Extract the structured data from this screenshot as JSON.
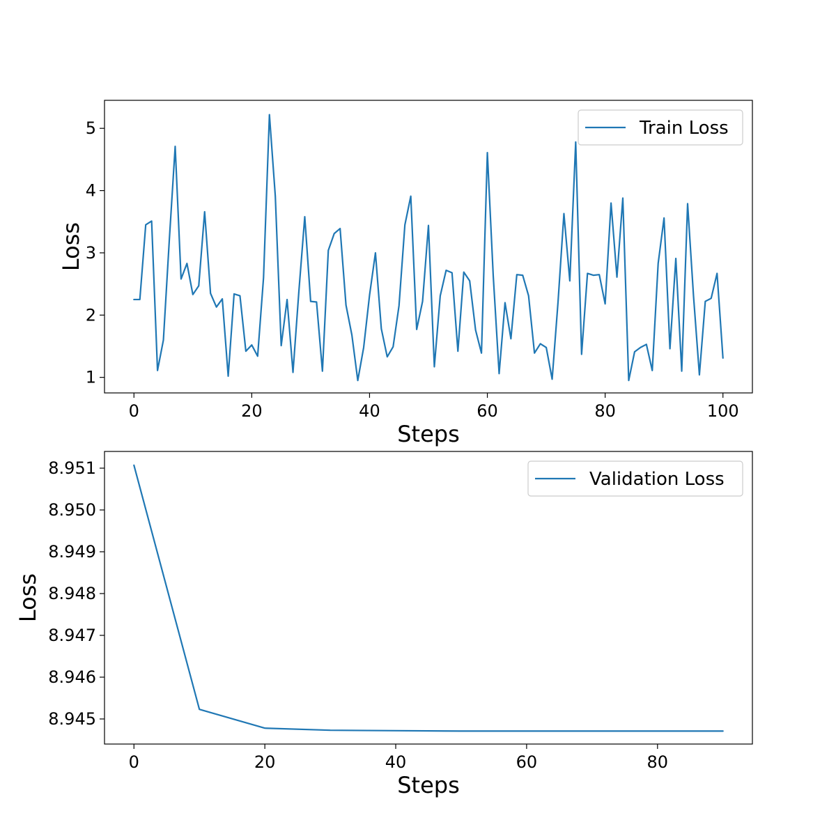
{
  "chart_data": [
    {
      "type": "line",
      "xlabel": "Steps",
      "ylabel": "Loss",
      "xlim": [
        -5,
        105
      ],
      "ylim": [
        0.75,
        5.45
      ],
      "xticks": [
        0,
        20,
        40,
        60,
        80,
        100
      ],
      "yticks": [
        1,
        2,
        3,
        4,
        5
      ],
      "grid": false,
      "legend_position": "top-right",
      "color": "#1f77b4",
      "series": [
        {
          "name": "Train Loss",
          "x": [
            0,
            1,
            2,
            3,
            4,
            5,
            6,
            7,
            8,
            9,
            10,
            11,
            12,
            13,
            14,
            15,
            16,
            17,
            18,
            19,
            20,
            21,
            22,
            23,
            24,
            25,
            26,
            27,
            28,
            29,
            30,
            31,
            32,
            33,
            34,
            35,
            36,
            37,
            38,
            39,
            40,
            41,
            42,
            43,
            44,
            45,
            46,
            47,
            48,
            49,
            50,
            51,
            52,
            53,
            54,
            55,
            56,
            57,
            58,
            59,
            60,
            61,
            62,
            63,
            64,
            65,
            66,
            67,
            68,
            69,
            70,
            71,
            72,
            73,
            74,
            75,
            76,
            77,
            78,
            79,
            80,
            81,
            82,
            83,
            84,
            85,
            86,
            87,
            88,
            89,
            90,
            91,
            92,
            93,
            94,
            95,
            96,
            97,
            98,
            99,
            100
          ],
          "values": [
            2.25,
            2.25,
            3.45,
            3.51,
            1.11,
            1.6,
            3.2,
            4.71,
            2.58,
            2.83,
            2.33,
            2.47,
            3.66,
            2.35,
            2.13,
            2.26,
            1.02,
            2.34,
            2.31,
            1.42,
            1.52,
            1.34,
            2.6,
            5.22,
            3.91,
            1.51,
            2.25,
            1.08,
            2.38,
            3.58,
            2.22,
            2.21,
            1.1,
            3.04,
            3.31,
            3.39,
            2.16,
            1.68,
            0.95,
            1.48,
            2.32,
            3.0,
            1.78,
            1.33,
            1.49,
            2.15,
            3.45,
            3.91,
            1.77,
            2.22,
            3.44,
            1.17,
            2.31,
            2.72,
            2.68,
            1.42,
            2.69,
            2.55,
            1.76,
            1.39,
            4.61,
            2.63,
            1.06,
            2.2,
            1.62,
            2.65,
            2.64,
            2.31,
            1.39,
            1.54,
            1.48,
            0.97,
            2.21,
            3.63,
            2.55,
            4.78,
            1.37,
            2.67,
            2.64,
            2.65,
            2.18,
            3.8,
            2.61,
            3.88,
            0.95,
            1.41,
            1.48,
            1.53,
            1.11,
            2.83,
            3.56,
            1.46,
            2.91,
            1.1,
            3.79,
            2.31,
            1.04,
            2.22,
            2.27,
            2.67,
            1.31
          ]
        }
      ]
    },
    {
      "type": "line",
      "xlabel": "Steps",
      "ylabel": "Loss",
      "xlim": [
        -4.5,
        94.5
      ],
      "ylim": [
        8.9444,
        8.9514
      ],
      "xticks": [
        0,
        20,
        40,
        60,
        80
      ],
      "yticks": [
        8.945,
        8.946,
        8.947,
        8.948,
        8.949,
        8.95,
        8.951
      ],
      "ytick_labels": [
        "8.945",
        "8.946",
        "8.947",
        "8.948",
        "8.949",
        "8.950",
        "8.951"
      ],
      "grid": false,
      "legend_position": "top-right",
      "color": "#1f77b4",
      "series": [
        {
          "name": "Validation Loss",
          "x": [
            0,
            10,
            20,
            30,
            40,
            50,
            60,
            70,
            80,
            90
          ],
          "values": [
            8.95107,
            8.94523,
            8.94478,
            8.94473,
            8.94472,
            8.94471,
            8.94471,
            8.94471,
            8.94471,
            8.94471
          ]
        }
      ]
    }
  ]
}
